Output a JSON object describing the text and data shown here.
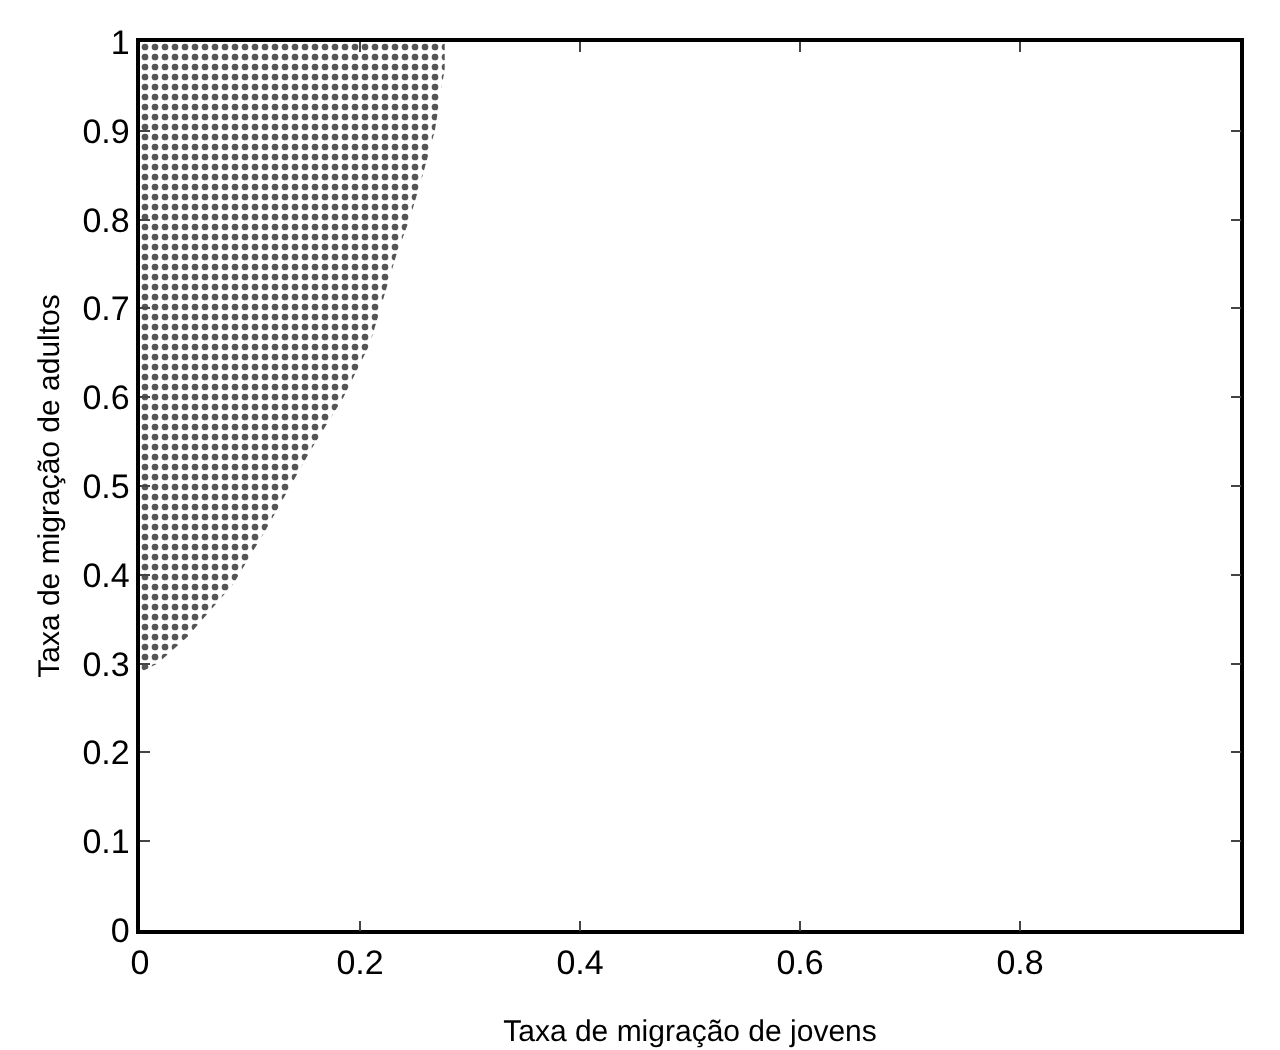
{
  "chart_data": {
    "type": "area",
    "xlabel": "Taxa de migração de jovens",
    "ylabel": "Taxa de migração de adultos",
    "xlim": [
      0,
      1
    ],
    "ylim": [
      0,
      1
    ],
    "xticks": [
      0,
      0.2,
      0.4,
      0.6,
      0.8,
      {
        "value": 1,
        "label": null
      }
    ],
    "yticks": [
      0,
      0.1,
      0.2,
      0.3,
      0.4,
      0.5,
      0.6,
      0.7,
      0.8,
      0.9,
      1
    ],
    "grid": false,
    "series": [
      {
        "color": "#555555",
        "x": [
          0,
          0.016,
          0.043,
          0.085,
          0.114,
          0.155,
          0.185,
          0.209,
          0.233,
          0.245,
          0.257,
          0.268,
          0.277,
          0.277,
          0
        ],
        "values": [
          0.29,
          0.3,
          0.33,
          0.39,
          0.45,
          0.54,
          0.6,
          0.66,
          0.76,
          0.8,
          0.85,
          0.9,
          0.97,
          1,
          1
        ]
      }
    ]
  }
}
